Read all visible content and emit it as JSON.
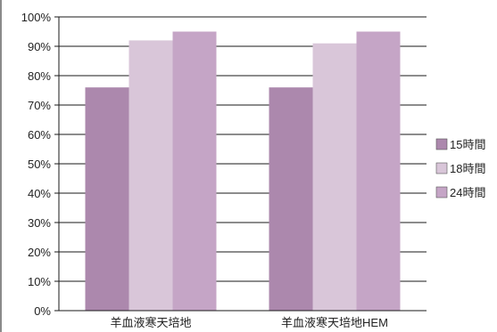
{
  "chart_data": {
    "type": "bar",
    "categories": [
      "羊血液寒天培地",
      "羊血液寒天培地HEM"
    ],
    "series": [
      {
        "name": "15時間",
        "values": [
          76,
          76
        ],
        "color": "#ac88ad"
      },
      {
        "name": "18時間",
        "values": [
          92,
          91
        ],
        "color": "#d9c6d9"
      },
      {
        "name": "24時間",
        "values": [
          95,
          95
        ],
        "color": "#c5a5c6"
      }
    ],
    "ylim": [
      0,
      100
    ],
    "y_ticks": [
      "0%",
      "10%",
      "20%",
      "30%",
      "40%",
      "50%",
      "60%",
      "70%",
      "80%",
      "90%",
      "100%"
    ],
    "grid": true,
    "legend_position": "right",
    "title": "",
    "xlabel": "",
    "ylabel": ""
  }
}
